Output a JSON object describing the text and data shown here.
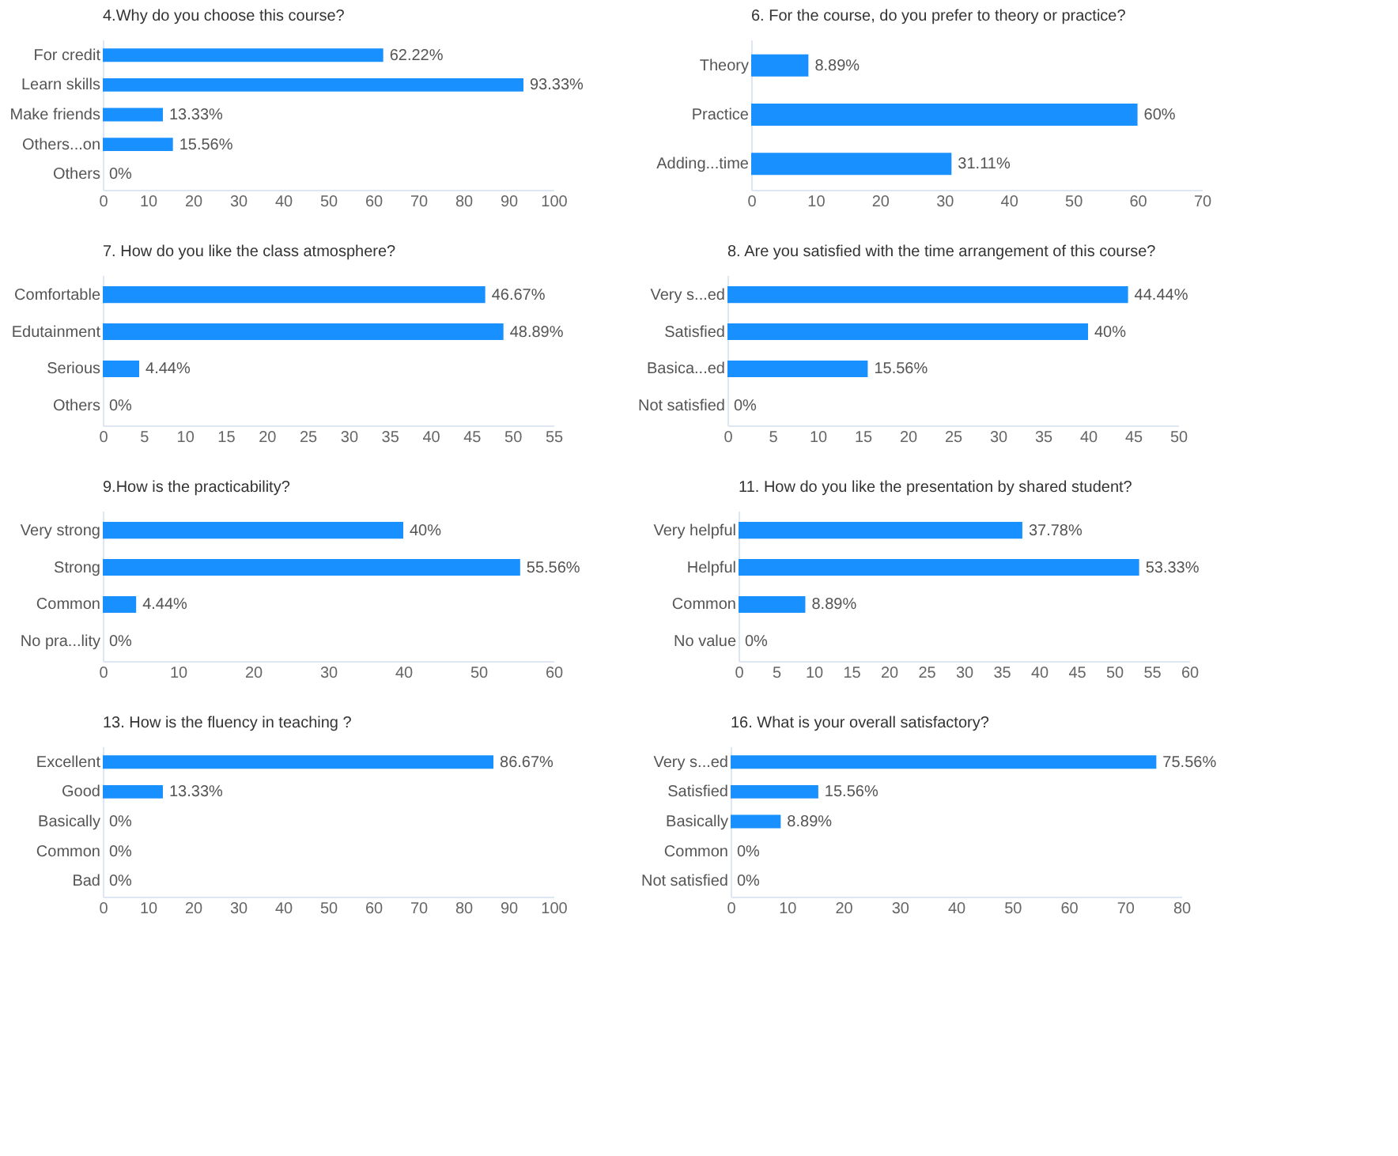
{
  "chart_data": [
    {
      "type": "bar",
      "orientation": "horizontal",
      "title": "4.Why do you choose this course?",
      "categories": [
        "For credit",
        "Learn skills",
        "Make friends",
        "Others...on",
        "Others"
      ],
      "values": [
        62.22,
        93.33,
        13.33,
        15.56,
        0
      ],
      "value_labels": [
        "62.22%",
        "93.33%",
        "13.33%",
        "15.56%",
        "0%"
      ],
      "color": "#1890ff",
      "xlim": [
        0,
        100
      ],
      "xticks": [
        0,
        10,
        20,
        30,
        40,
        50,
        60,
        70,
        80,
        90,
        100
      ],
      "grid": false
    },
    {
      "type": "bar",
      "orientation": "horizontal",
      "title": "6. For the course, do you prefer to theory or practice?",
      "categories": [
        "Theory",
        "Practice",
        "Adding...time"
      ],
      "values": [
        8.89,
        60,
        31.11
      ],
      "value_labels": [
        "8.89%",
        "60%",
        "31.11%"
      ],
      "color": "#1890ff",
      "xlim": [
        0,
        70
      ],
      "xticks": [
        0,
        10,
        20,
        30,
        40,
        50,
        60,
        70
      ],
      "grid": false
    },
    {
      "type": "bar",
      "orientation": "horizontal",
      "title": "7. How do you like the class atmosphere?",
      "categories": [
        "Comfortable",
        "Edutainment",
        "Serious",
        "Others"
      ],
      "values": [
        46.67,
        48.89,
        4.44,
        0
      ],
      "value_labels": [
        "46.67%",
        "48.89%",
        "4.44%",
        "0%"
      ],
      "color": "#1890ff",
      "xlim": [
        0,
        55
      ],
      "xticks": [
        0,
        5,
        10,
        15,
        20,
        25,
        30,
        35,
        40,
        45,
        50,
        55
      ],
      "grid": false
    },
    {
      "type": "bar",
      "orientation": "horizontal",
      "title": "8. Are you satisfied with the time arrangement of this course?",
      "categories": [
        "Very s...ed",
        "Satisfied",
        "Basica...ed",
        "Not satisfied"
      ],
      "values": [
        44.44,
        40,
        15.56,
        0
      ],
      "value_labels": [
        "44.44%",
        "40%",
        "15.56%",
        "0%"
      ],
      "color": "#1890ff",
      "xlim": [
        0,
        50
      ],
      "xticks": [
        0,
        5,
        10,
        15,
        20,
        25,
        30,
        35,
        40,
        45,
        50
      ],
      "grid": false
    },
    {
      "type": "bar",
      "orientation": "horizontal",
      "title": "9.How is the practicability?",
      "categories": [
        "Very strong",
        "Strong",
        "Common",
        "No pra...lity"
      ],
      "values": [
        40,
        55.56,
        4.44,
        0
      ],
      "value_labels": [
        "40%",
        "55.56%",
        "4.44%",
        "0%"
      ],
      "color": "#1890ff",
      "xlim": [
        0,
        60
      ],
      "xticks": [
        0,
        10,
        20,
        30,
        40,
        50,
        60
      ],
      "grid": false
    },
    {
      "type": "bar",
      "orientation": "horizontal",
      "title": "11. How do you like the presentation by shared student?",
      "categories": [
        "Very helpful",
        "Helpful",
        "Common",
        "No value"
      ],
      "values": [
        37.78,
        53.33,
        8.89,
        0
      ],
      "value_labels": [
        "37.78%",
        "53.33%",
        "8.89%",
        "0%"
      ],
      "color": "#1890ff",
      "xlim": [
        0,
        60
      ],
      "xticks": [
        0,
        5,
        10,
        15,
        20,
        25,
        30,
        35,
        40,
        45,
        50,
        55,
        60
      ],
      "grid": false
    },
    {
      "type": "bar",
      "orientation": "horizontal",
      "title": "13. How is the fluency in teaching ?",
      "categories": [
        "Excellent",
        "Good",
        "Basically",
        "Common",
        "Bad"
      ],
      "values": [
        86.67,
        13.33,
        0,
        0,
        0
      ],
      "value_labels": [
        "86.67%",
        "13.33%",
        "0%",
        "0%",
        "0%"
      ],
      "color": "#1890ff",
      "xlim": [
        0,
        100
      ],
      "xticks": [
        0,
        10,
        20,
        30,
        40,
        50,
        60,
        70,
        80,
        90,
        100
      ],
      "grid": false
    },
    {
      "type": "bar",
      "orientation": "horizontal",
      "title": "16. What is your overall satisfactory?",
      "categories": [
        "Very s...ed",
        "Satisfied",
        "Basically",
        "Common",
        "Not satisfied"
      ],
      "values": [
        75.56,
        15.56,
        8.89,
        0,
        0
      ],
      "value_labels": [
        "75.56%",
        "15.56%",
        "8.89%",
        "0%",
        "0%"
      ],
      "color": "#1890ff",
      "xlim": [
        0,
        80
      ],
      "xticks": [
        0,
        10,
        20,
        30,
        40,
        50,
        60,
        70,
        80
      ],
      "grid": false
    }
  ]
}
